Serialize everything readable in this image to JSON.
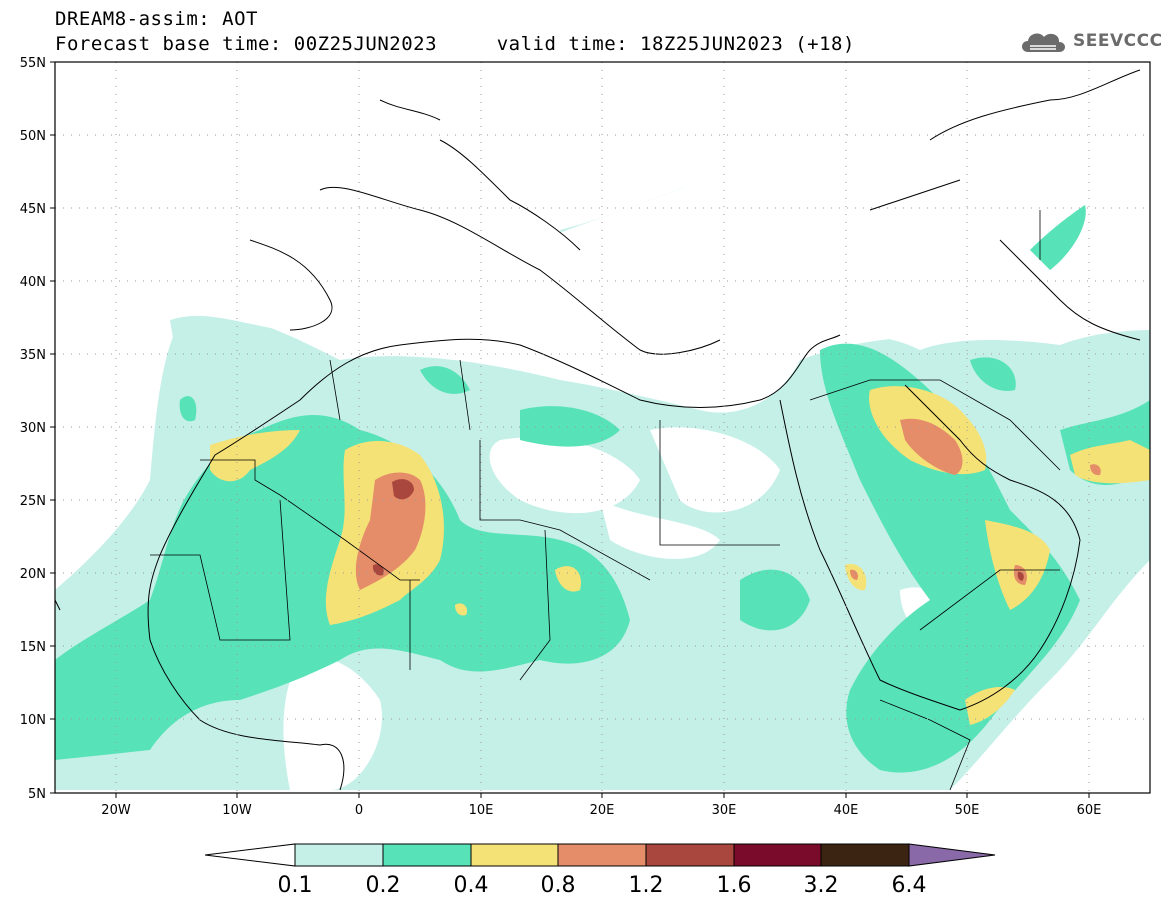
{
  "header": {
    "title": "DREAM8-assim: AOT",
    "subtitle": "Forecast base time: 00Z25JUN2023     valid time: 18Z25JUN2023 (+18)"
  },
  "logo": {
    "text": "SEEVCCC"
  },
  "map": {
    "projection": "lat-lon",
    "lon_range": [
      -25,
      65
    ],
    "lat_range": [
      5,
      55
    ],
    "lat_ticks": [
      "55N",
      "50N",
      "45N",
      "40N",
      "35N",
      "30N",
      "25N",
      "20N",
      "15N",
      "10N",
      "5N"
    ],
    "lon_ticks": [
      "20W",
      "10W",
      "0",
      "10E",
      "20E",
      "30E",
      "40E",
      "50E",
      "60E"
    ],
    "grid": "dotted"
  },
  "legend": {
    "levels": [
      "0.1",
      "0.2",
      "0.4",
      "0.8",
      "1.2",
      "1.6",
      "3.2",
      "6.4"
    ],
    "colors": [
      "#ffffff",
      "#c5f0e8",
      "#58e2b7",
      "#f5e277",
      "#e48d68",
      "#a9473e",
      "#7b0b2a",
      "#3c2413",
      "#8a69a8"
    ]
  }
}
